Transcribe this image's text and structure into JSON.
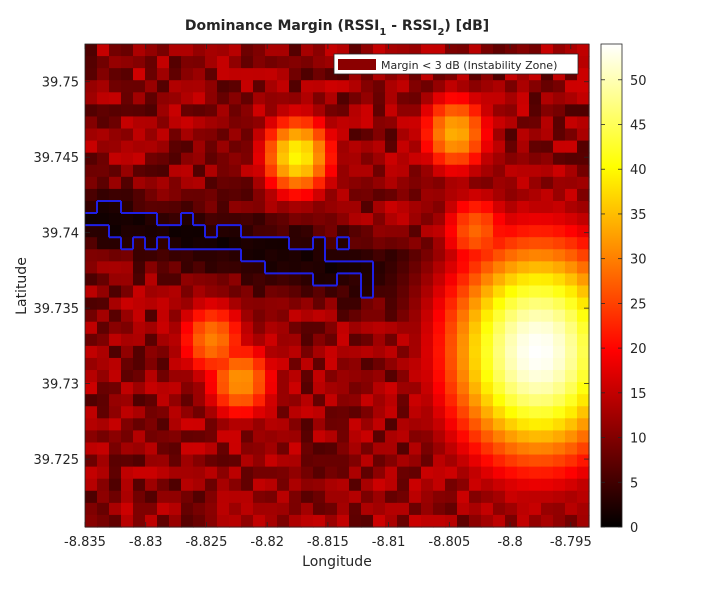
{
  "chart_data": {
    "type": "heatmap",
    "title": "Dominance Margin (RSSI",
    "title_sub1": "1",
    "title_mid": " - RSSI",
    "title_sub2": "2",
    "title_end": ") [dB]",
    "xlabel": "Longitude",
    "ylabel": "Latitude",
    "xlim": [
      -8.835,
      -8.7935
    ],
    "ylim": [
      39.7205,
      39.7525
    ],
    "x_ticks": [
      -8.835,
      -8.83,
      -8.825,
      -8.82,
      -8.815,
      -8.81,
      -8.805,
      -8.8,
      -8.795
    ],
    "x_tick_labels": [
      "-8.835",
      "-8.83",
      "-8.825",
      "-8.82",
      "-8.815",
      "-8.81",
      "-8.805",
      "-8.8",
      "-8.795"
    ],
    "y_ticks": [
      39.725,
      39.73,
      39.735,
      39.74,
      39.745,
      39.75
    ],
    "y_tick_labels": [
      "39.725",
      "39.73",
      "39.735",
      "39.74",
      "39.745",
      "39.75"
    ],
    "colorbar": {
      "colormap": "hot",
      "range": [
        0,
        54
      ],
      "ticks": [
        0,
        5,
        10,
        15,
        20,
        25,
        30,
        35,
        40,
        45,
        50
      ],
      "tick_labels": [
        "0",
        "5",
        "10",
        "15",
        "20",
        "25",
        "30",
        "35",
        "40",
        "45",
        "50"
      ]
    },
    "legend": {
      "placement": "top-right",
      "label": "Margin < 3 dB (Instability Zone)",
      "swatch_color": "#8b0000"
    },
    "contour": {
      "level_db": 3,
      "color": "#1f1fe6"
    },
    "grid": {
      "cols": 42,
      "rows": 40
    },
    "peaks": [
      {
        "x": -8.7977,
        "y": 39.7321,
        "value": 54
      },
      {
        "x": -8.8175,
        "y": 39.7451,
        "value": 40
      },
      {
        "x": -8.8045,
        "y": 39.7466,
        "value": 34
      },
      {
        "x": -8.8245,
        "y": 39.7329,
        "value": 30
      },
      {
        "x": -8.8028,
        "y": 39.7401,
        "value": 28
      },
      {
        "x": -8.8222,
        "y": 39.7302,
        "value": 32
      }
    ],
    "background_field": "mixed red/dark noise 4–20 dB"
  }
}
